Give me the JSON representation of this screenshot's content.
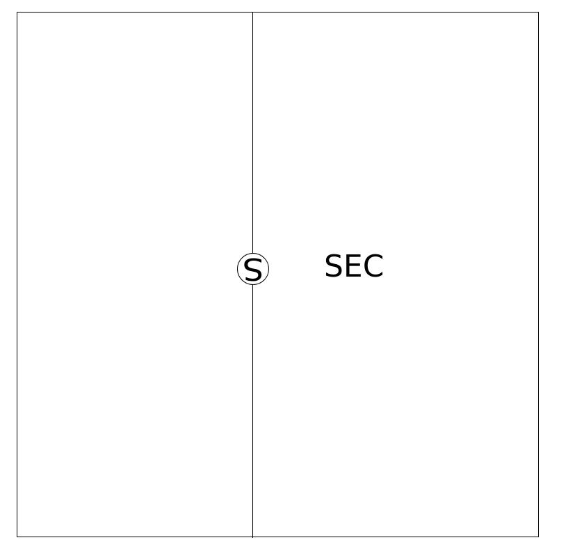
{
  "diagram": {
    "node_symbol": "S",
    "section_label": "SEC",
    "colors": {
      "stroke": "#000000",
      "background": "#ffffff"
    }
  }
}
